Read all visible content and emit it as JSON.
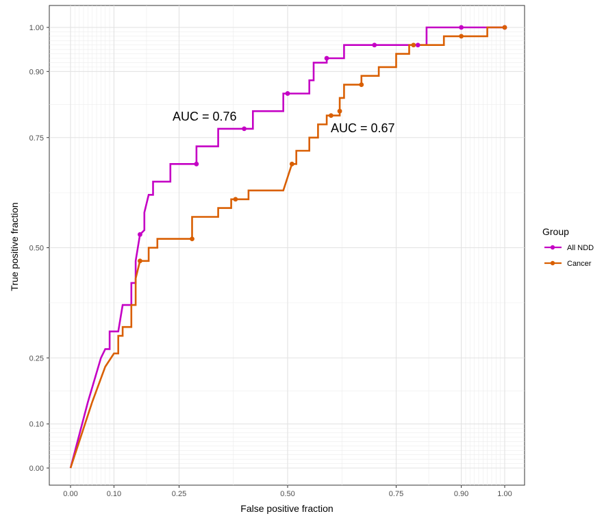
{
  "chart_data": {
    "type": "line",
    "xlabel": "False positive fraction",
    "ylabel": "True positive fraction",
    "xlim": [
      0,
      1
    ],
    "ylim": [
      0,
      1
    ],
    "x_ticks": [
      "0.00",
      "0.10",
      "0.25",
      "0.50",
      "0.75",
      "0.90",
      "1.00"
    ],
    "y_ticks": [
      "0.00",
      "0.10",
      "0.25",
      "0.50",
      "0.75",
      "0.90",
      "1.00"
    ],
    "grid": true,
    "legend": {
      "title": "Group",
      "position": "right"
    },
    "annotations": [
      {
        "text": "AUC = 0.76",
        "x": 0.35,
        "y": 0.8
      },
      {
        "text": "AUC = 0.67",
        "x": 0.59,
        "y": 0.77
      }
    ],
    "series": [
      {
        "name": "All NDD",
        "color": "#C400C4",
        "points": [
          [
            0.0,
            0.0
          ],
          [
            0.04,
            0.15
          ],
          [
            0.07,
            0.25
          ],
          [
            0.08,
            0.27
          ],
          [
            0.09,
            0.27
          ],
          [
            0.09,
            0.31
          ],
          [
            0.11,
            0.31
          ],
          [
            0.12,
            0.37
          ],
          [
            0.14,
            0.37
          ],
          [
            0.14,
            0.42
          ],
          [
            0.15,
            0.42
          ],
          [
            0.15,
            0.47
          ],
          [
            0.16,
            0.53
          ],
          [
            0.17,
            0.54
          ],
          [
            0.17,
            0.58
          ],
          [
            0.18,
            0.62
          ],
          [
            0.19,
            0.62
          ],
          [
            0.19,
            0.65
          ],
          [
            0.23,
            0.65
          ],
          [
            0.23,
            0.69
          ],
          [
            0.29,
            0.69
          ],
          [
            0.29,
            0.73
          ],
          [
            0.34,
            0.73
          ],
          [
            0.34,
            0.77
          ],
          [
            0.42,
            0.77
          ],
          [
            0.42,
            0.81
          ],
          [
            0.49,
            0.81
          ],
          [
            0.49,
            0.85
          ],
          [
            0.55,
            0.85
          ],
          [
            0.55,
            0.88
          ],
          [
            0.56,
            0.88
          ],
          [
            0.56,
            0.92
          ],
          [
            0.59,
            0.92
          ],
          [
            0.59,
            0.93
          ],
          [
            0.63,
            0.93
          ],
          [
            0.63,
            0.96
          ],
          [
            0.77,
            0.96
          ],
          [
            0.79,
            0.96
          ],
          [
            0.82,
            0.96
          ],
          [
            0.82,
            1.0
          ],
          [
            0.9,
            1.0
          ],
          [
            1.0,
            1.0
          ]
        ],
        "markers": [
          [
            0.16,
            0.53
          ],
          [
            0.29,
            0.69
          ],
          [
            0.4,
            0.77
          ],
          [
            0.5,
            0.85
          ],
          [
            0.59,
            0.93
          ],
          [
            0.7,
            0.96
          ],
          [
            0.8,
            0.96
          ],
          [
            0.9,
            1.0
          ],
          [
            1.0,
            1.0
          ]
        ]
      },
      {
        "name": "Cancer",
        "color": "#D95F02",
        "points": [
          [
            0.0,
            0.0
          ],
          [
            0.05,
            0.15
          ],
          [
            0.08,
            0.23
          ],
          [
            0.1,
            0.26
          ],
          [
            0.11,
            0.26
          ],
          [
            0.11,
            0.3
          ],
          [
            0.12,
            0.3
          ],
          [
            0.12,
            0.32
          ],
          [
            0.14,
            0.32
          ],
          [
            0.14,
            0.37
          ],
          [
            0.15,
            0.37
          ],
          [
            0.15,
            0.43
          ],
          [
            0.16,
            0.47
          ],
          [
            0.18,
            0.47
          ],
          [
            0.18,
            0.5
          ],
          [
            0.2,
            0.5
          ],
          [
            0.2,
            0.52
          ],
          [
            0.28,
            0.52
          ],
          [
            0.28,
            0.57
          ],
          [
            0.34,
            0.57
          ],
          [
            0.34,
            0.59
          ],
          [
            0.37,
            0.59
          ],
          [
            0.37,
            0.61
          ],
          [
            0.41,
            0.61
          ],
          [
            0.41,
            0.63
          ],
          [
            0.49,
            0.63
          ],
          [
            0.5,
            0.66
          ],
          [
            0.51,
            0.69
          ],
          [
            0.52,
            0.69
          ],
          [
            0.52,
            0.72
          ],
          [
            0.55,
            0.72
          ],
          [
            0.55,
            0.75
          ],
          [
            0.57,
            0.75
          ],
          [
            0.57,
            0.78
          ],
          [
            0.59,
            0.78
          ],
          [
            0.59,
            0.8
          ],
          [
            0.62,
            0.8
          ],
          [
            0.62,
            0.84
          ],
          [
            0.63,
            0.84
          ],
          [
            0.63,
            0.87
          ],
          [
            0.67,
            0.87
          ],
          [
            0.67,
            0.89
          ],
          [
            0.71,
            0.89
          ],
          [
            0.71,
            0.91
          ],
          [
            0.75,
            0.91
          ],
          [
            0.75,
            0.94
          ],
          [
            0.78,
            0.94
          ],
          [
            0.78,
            0.96
          ],
          [
            0.86,
            0.96
          ],
          [
            0.86,
            0.98
          ],
          [
            0.96,
            0.98
          ],
          [
            0.96,
            1.0
          ],
          [
            1.0,
            1.0
          ]
        ],
        "markers": [
          [
            0.28,
            0.52
          ],
          [
            0.16,
            0.47
          ],
          [
            0.38,
            0.61
          ],
          [
            0.51,
            0.69
          ],
          [
            0.6,
            0.8
          ],
          [
            0.62,
            0.81
          ],
          [
            0.67,
            0.87
          ],
          [
            0.79,
            0.96
          ],
          [
            0.9,
            0.98
          ],
          [
            1.0,
            1.0
          ]
        ]
      }
    ]
  }
}
